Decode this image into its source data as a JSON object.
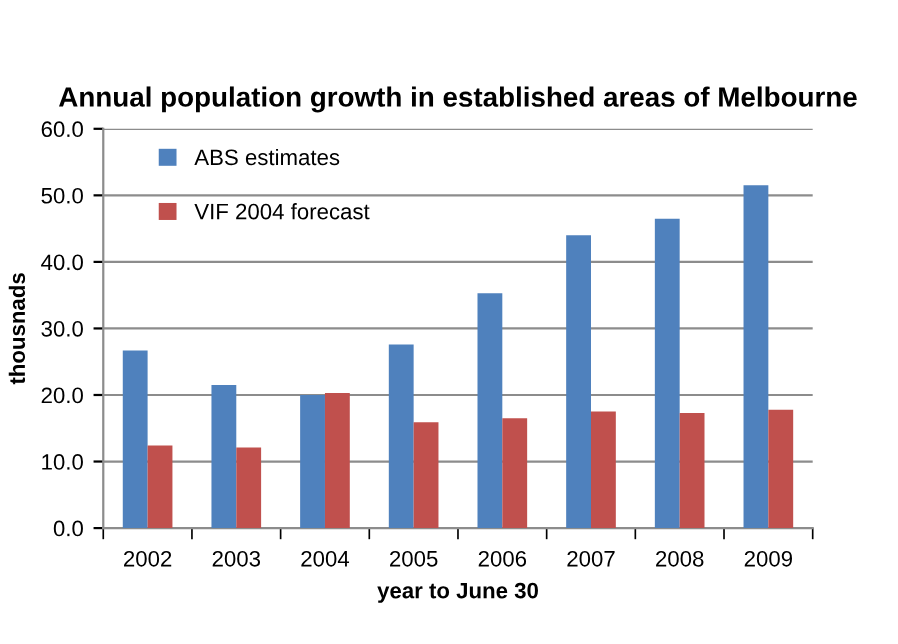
{
  "chart_data": {
    "type": "bar",
    "title": "Annual population growth in established areas of Melbourne",
    "xlabel": "year to June 30",
    "ylabel": "thousnads",
    "categories": [
      "2002",
      "2003",
      "2004",
      "2005",
      "2006",
      "2007",
      "2008",
      "2009"
    ],
    "series": [
      {
        "name": "ABS estimates",
        "color": "#4f81bd",
        "values": [
          26.7,
          21.5,
          20.0,
          27.6,
          35.3,
          44.0,
          46.5,
          51.5
        ]
      },
      {
        "name": "VIF 2004 forecast",
        "color": "#c0504d",
        "values": [
          12.4,
          12.1,
          20.3,
          15.9,
          16.5,
          17.5,
          17.3,
          17.8
        ]
      }
    ],
    "ylim": [
      0,
      60
    ],
    "yticks": [
      {
        "value": 0,
        "label": "0.0"
      },
      {
        "value": 10,
        "label": "10.0"
      },
      {
        "value": 20,
        "label": "20.0"
      },
      {
        "value": 30,
        "label": "30.0"
      },
      {
        "value": 40,
        "label": "40.0"
      },
      {
        "value": 50,
        "label": "50.0"
      },
      {
        "value": 60,
        "label": "60.0"
      }
    ],
    "grid": "y",
    "legend": "top left"
  }
}
